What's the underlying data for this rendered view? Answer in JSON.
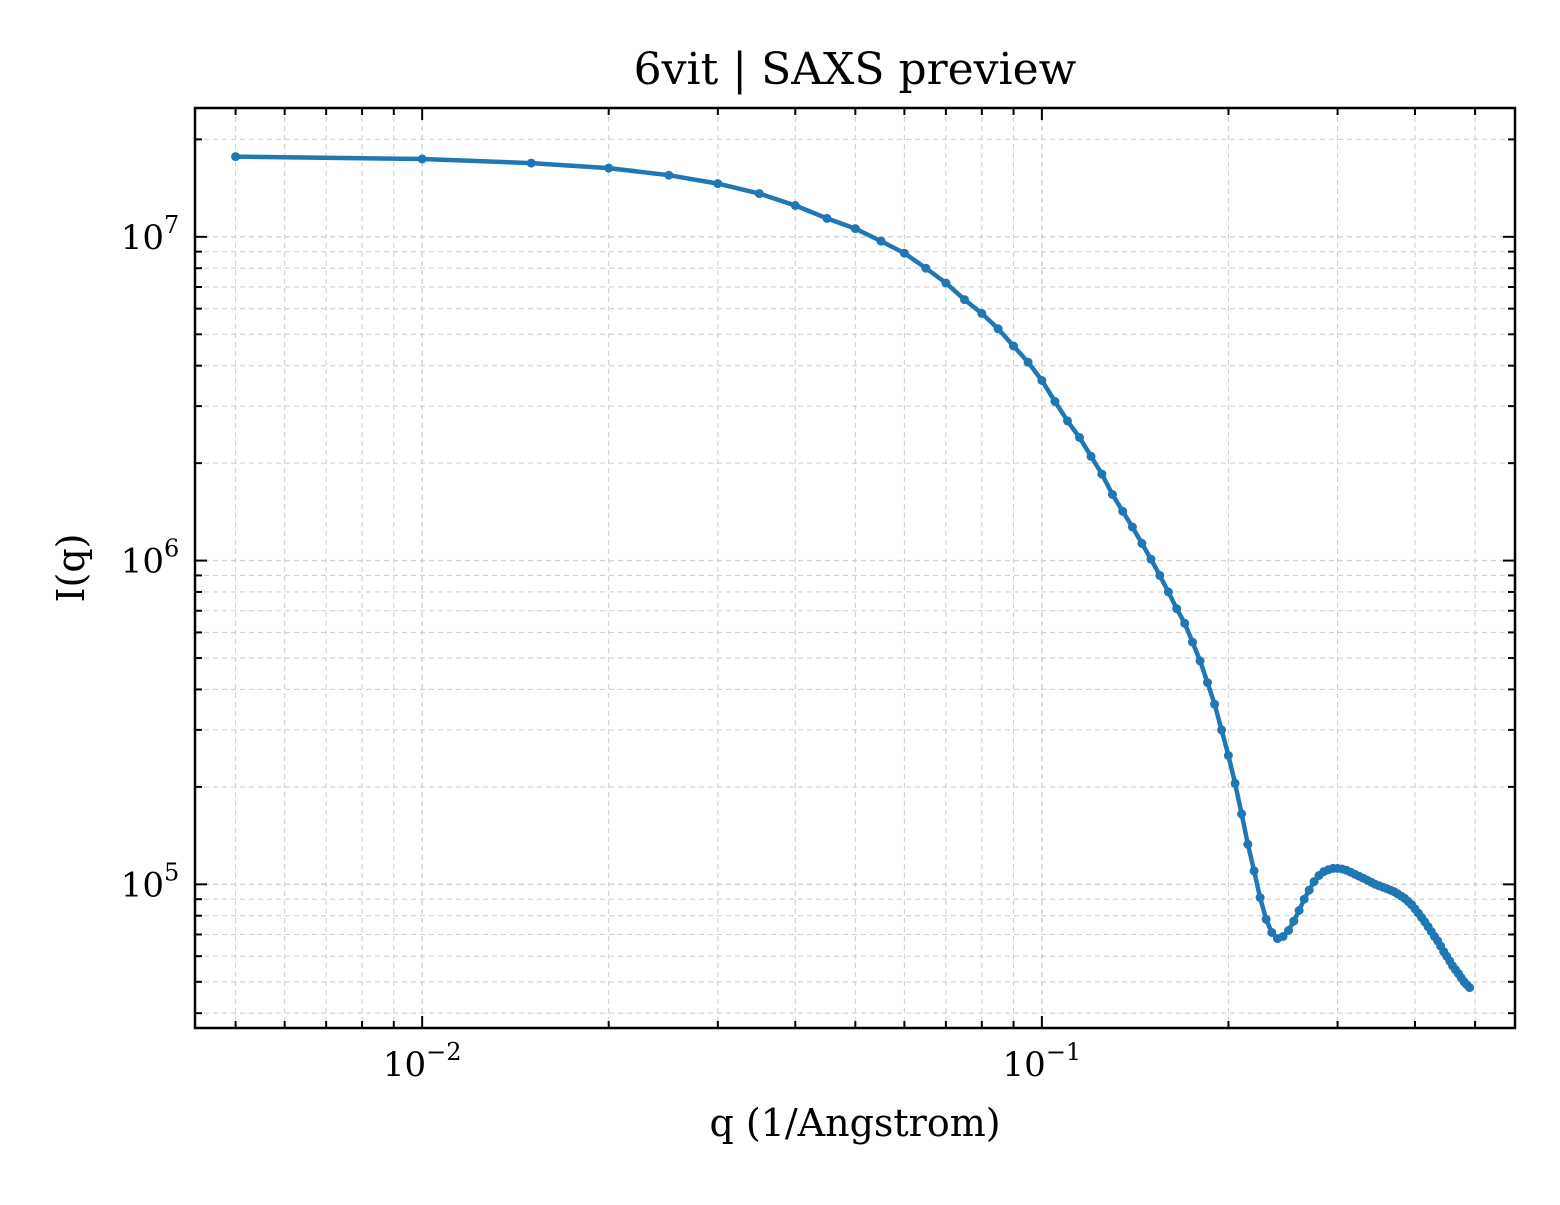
{
  "chart_data": {
    "type": "line",
    "title": "6vit | SAXS preview",
    "xlabel": "q (1/Angstrom)",
    "ylabel": "I(q)",
    "x_scale": "log",
    "y_scale": "log",
    "xlim": [
      0.0043,
      0.58
    ],
    "ylim": [
      36000,
      25000000
    ],
    "grid": true,
    "x_ticks": [
      {
        "value": 0.01,
        "base": "10",
        "exp": "−2"
      },
      {
        "value": 0.1,
        "base": "10",
        "exp": "−1"
      }
    ],
    "y_ticks": [
      {
        "value": 100000,
        "base": "10",
        "exp": "5"
      },
      {
        "value": 1000000,
        "base": "10",
        "exp": "6"
      },
      {
        "value": 10000000,
        "base": "10",
        "exp": "7"
      }
    ],
    "series": [
      {
        "color": "#1f77b4",
        "marker": "circle",
        "points": [
          [
            0.005,
            17700000
          ],
          [
            0.01,
            17400000
          ],
          [
            0.015,
            16900000
          ],
          [
            0.02,
            16300000
          ],
          [
            0.025,
            15500000
          ],
          [
            0.03,
            14600000
          ],
          [
            0.035,
            13600000
          ],
          [
            0.04,
            12500000
          ],
          [
            0.045,
            11400000
          ],
          [
            0.05,
            10600000
          ],
          [
            0.055,
            9700000
          ],
          [
            0.06,
            8900000
          ],
          [
            0.065,
            8000000
          ],
          [
            0.07,
            7200000
          ],
          [
            0.075,
            6400000
          ],
          [
            0.08,
            5800000
          ],
          [
            0.085,
            5200000
          ],
          [
            0.09,
            4600000
          ],
          [
            0.095,
            4100000
          ],
          [
            0.1,
            3600000
          ],
          [
            0.105,
            3100000
          ],
          [
            0.11,
            2700000
          ],
          [
            0.115,
            2400000
          ],
          [
            0.12,
            2100000
          ],
          [
            0.125,
            1850000
          ],
          [
            0.13,
            1600000
          ],
          [
            0.135,
            1420000
          ],
          [
            0.14,
            1270000
          ],
          [
            0.145,
            1130000
          ],
          [
            0.15,
            1010000
          ],
          [
            0.155,
            900000
          ],
          [
            0.16,
            800000
          ],
          [
            0.165,
            710000
          ],
          [
            0.17,
            640000
          ],
          [
            0.175,
            560000
          ],
          [
            0.18,
            490000
          ],
          [
            0.185,
            420000
          ],
          [
            0.19,
            360000
          ],
          [
            0.195,
            300000
          ],
          [
            0.2,
            250000
          ],
          [
            0.205,
            205000
          ],
          [
            0.21,
            165000
          ],
          [
            0.215,
            133000
          ],
          [
            0.22,
            110000
          ],
          [
            0.225,
            91000
          ],
          [
            0.23,
            78000
          ],
          [
            0.235,
            71000
          ],
          [
            0.24,
            68000
          ],
          [
            0.245,
            69000
          ],
          [
            0.25,
            72000
          ],
          [
            0.255,
            77000
          ],
          [
            0.26,
            83000
          ],
          [
            0.265,
            90000
          ],
          [
            0.27,
            96000
          ],
          [
            0.275,
            102000
          ],
          [
            0.28,
            106500
          ],
          [
            0.285,
            109500
          ],
          [
            0.29,
            111000
          ],
          [
            0.295,
            112000
          ],
          [
            0.3,
            112000
          ],
          [
            0.305,
            111500
          ],
          [
            0.31,
            110500
          ],
          [
            0.315,
            109000
          ],
          [
            0.32,
            107500
          ],
          [
            0.325,
            106000
          ],
          [
            0.33,
            104500
          ],
          [
            0.335,
            103000
          ],
          [
            0.34,
            101500
          ],
          [
            0.345,
            100000
          ],
          [
            0.35,
            99000
          ],
          [
            0.355,
            98000
          ],
          [
            0.36,
            97000
          ],
          [
            0.365,
            96000
          ],
          [
            0.37,
            95000
          ],
          [
            0.375,
            93500
          ],
          [
            0.38,
            92000
          ],
          [
            0.385,
            90500
          ],
          [
            0.39,
            88500
          ],
          [
            0.395,
            86500
          ],
          [
            0.4,
            84000
          ],
          [
            0.405,
            81500
          ],
          [
            0.41,
            79000
          ],
          [
            0.415,
            76500
          ],
          [
            0.42,
            74000
          ],
          [
            0.425,
            71500
          ],
          [
            0.43,
            69000
          ],
          [
            0.435,
            67000
          ],
          [
            0.44,
            64500
          ],
          [
            0.445,
            62000
          ],
          [
            0.45,
            60000
          ],
          [
            0.455,
            58000
          ],
          [
            0.46,
            56000
          ],
          [
            0.465,
            54500
          ],
          [
            0.47,
            53000
          ],
          [
            0.475,
            51500
          ],
          [
            0.48,
            50000
          ],
          [
            0.485,
            49000
          ],
          [
            0.49,
            48000
          ]
        ]
      }
    ]
  }
}
